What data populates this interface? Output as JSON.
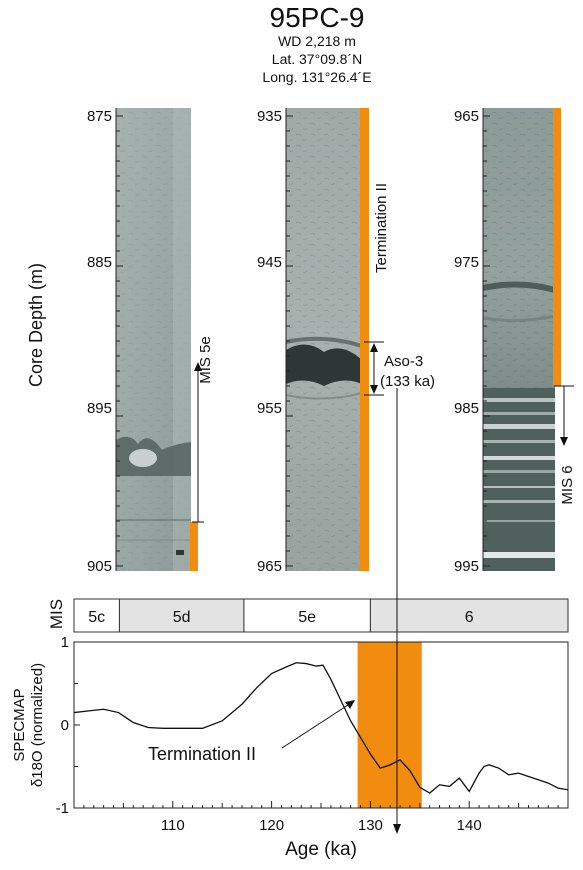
{
  "header": {
    "title": "95PC-9",
    "water_depth": "WD 2,218 m",
    "latitude": "Lat. 37°09.8´N",
    "longitude": "Long. 131°26.4´E"
  },
  "cores": {
    "ylabel": "Core Depth (m)",
    "columns": [
      {
        "ticks": [
          "875",
          "885",
          "895",
          "905"
        ]
      },
      {
        "ticks": [
          "935",
          "945",
          "955",
          "965"
        ]
      },
      {
        "ticks": [
          "965",
          "975",
          "985",
          "995"
        ]
      }
    ],
    "annotations": {
      "mis5e": "MIS 5e",
      "termination": "Termination II",
      "aso_name": "Aso-3",
      "aso_age": "(133 ka)",
      "mis6": "MIS 6"
    }
  },
  "mis_bar": {
    "label": "MIS",
    "stages": [
      {
        "label": "5c",
        "from": 100,
        "to": 104.6,
        "fill": "#ffffff"
      },
      {
        "label": "5d",
        "from": 104.6,
        "to": 117.2,
        "fill": "#e3e3e3"
      },
      {
        "label": "5e",
        "from": 117.2,
        "to": 130,
        "fill": "#ffffff"
      },
      {
        "label": "6",
        "from": 130,
        "to": 150,
        "fill": "#e3e3e3"
      }
    ]
  },
  "colors": {
    "accent": "#f28c0f",
    "stage_gray": "#e3e3e3"
  },
  "chart_data": {
    "type": "line",
    "xlabel": "Age (ka)",
    "ylabel_line1": "SPECMAP",
    "ylabel_line2": "δ18O (normalized)",
    "xlim": [
      100,
      150
    ],
    "ylim": [
      -1,
      1
    ],
    "xticks": [
      110,
      120,
      130,
      140
    ],
    "yticks": [
      1,
      0,
      -1
    ],
    "highlight": {
      "from": 128.7,
      "to": 135.2
    },
    "annotation": "Termination II",
    "series": [
      {
        "x": [
          100,
          101.5,
          103,
          104.5,
          106,
          107.5,
          109,
          111,
          113,
          115,
          117,
          118.5,
          120,
          121.5,
          122.5,
          123.5,
          124.5,
          125.2,
          126,
          127,
          128,
          129,
          130,
          131,
          132,
          133,
          134,
          135,
          136,
          137,
          138,
          139,
          140,
          141,
          141.5,
          142,
          143,
          144,
          145,
          146,
          147,
          148,
          149,
          150
        ],
        "y": [
          0.15,
          0.17,
          0.19,
          0.15,
          0.03,
          -0.03,
          -0.04,
          -0.04,
          -0.04,
          0.05,
          0.25,
          0.45,
          0.62,
          0.7,
          0.75,
          0.74,
          0.71,
          0.72,
          0.55,
          0.3,
          0.05,
          -0.15,
          -0.35,
          -0.52,
          -0.48,
          -0.42,
          -0.55,
          -0.75,
          -0.82,
          -0.72,
          -0.74,
          -0.64,
          -0.8,
          -0.58,
          -0.5,
          -0.48,
          -0.52,
          -0.6,
          -0.58,
          -0.62,
          -0.66,
          -0.7,
          -0.76,
          -0.78
        ]
      }
    ]
  }
}
